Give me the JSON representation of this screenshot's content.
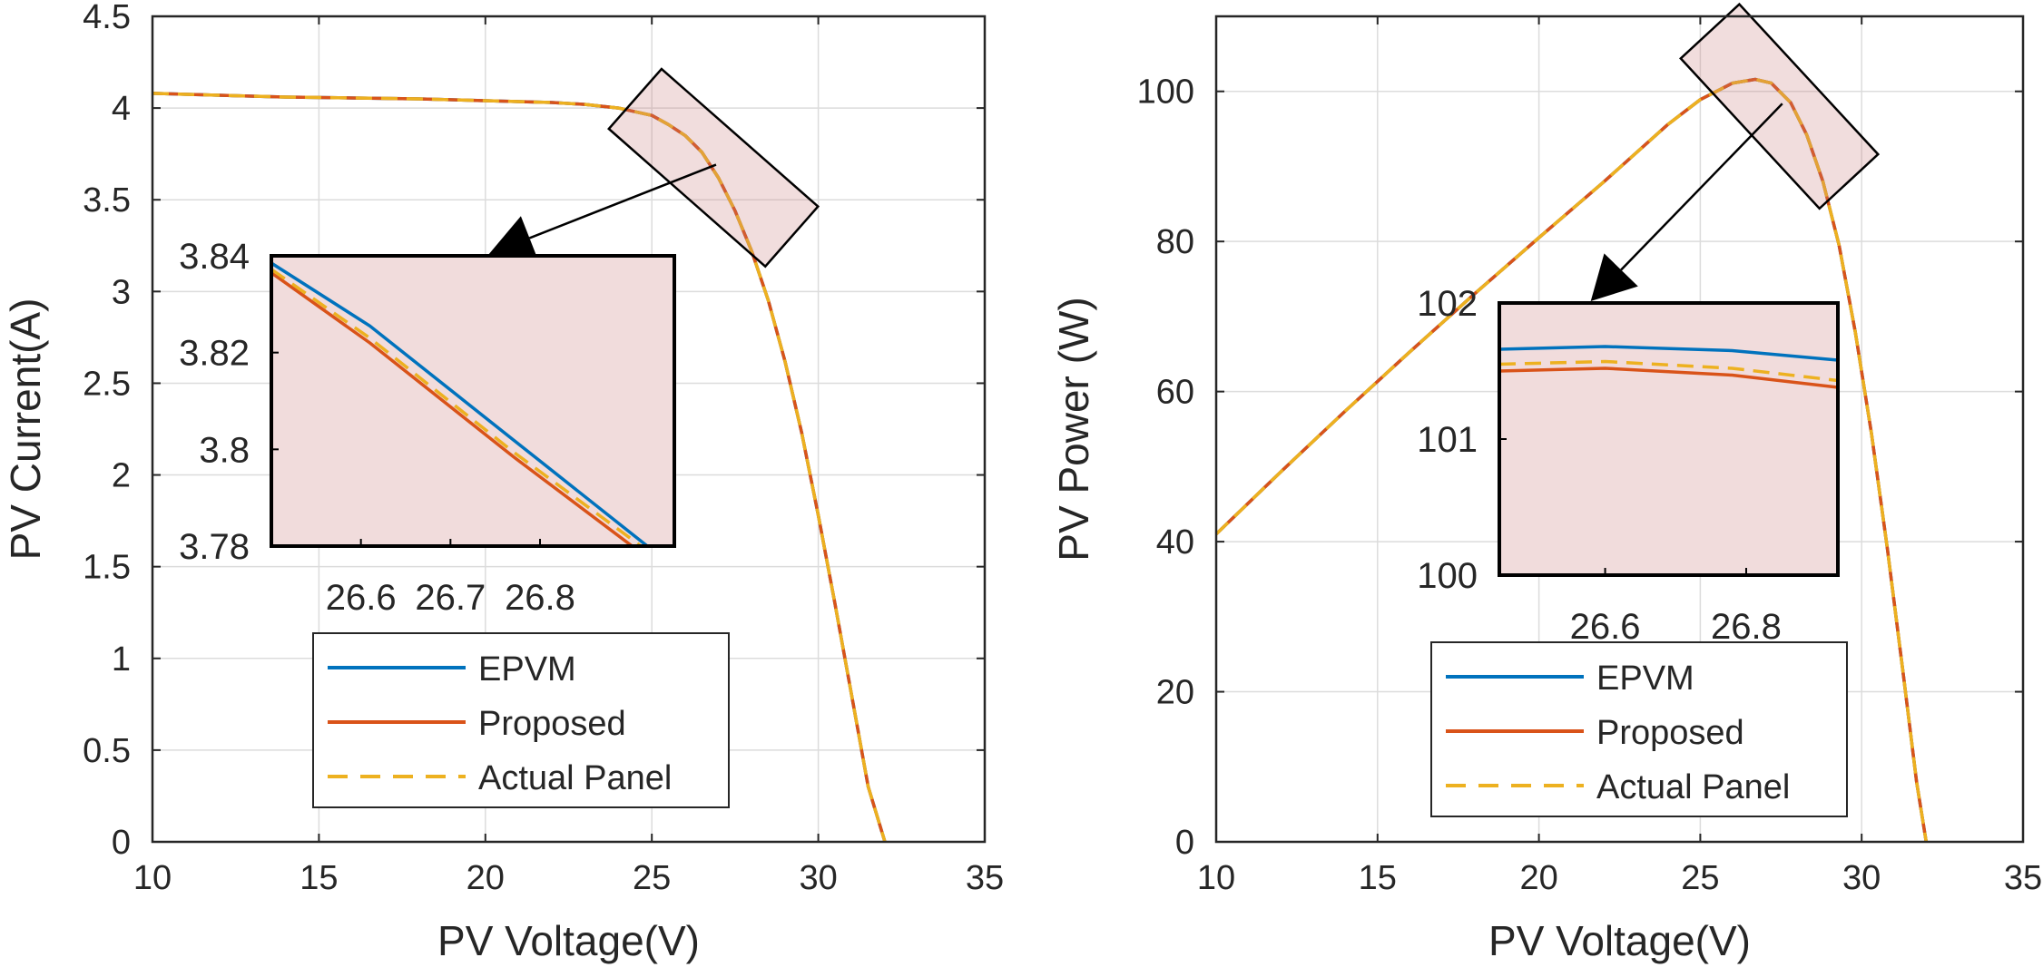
{
  "chart_data": [
    {
      "type": "line",
      "xlabel": "PV Voltage(V)",
      "ylabel": "PV Current(A)",
      "xlim": [
        10,
        35
      ],
      "ylim": [
        0,
        4.5
      ],
      "xticks": [
        10,
        15,
        20,
        25,
        30,
        35
      ],
      "xtick_labels": [
        "10",
        "15",
        "20",
        "25",
        "30",
        "35"
      ],
      "yticks": [
        0,
        0.5,
        1,
        1.5,
        2,
        2.5,
        3,
        3.5,
        4,
        4.5
      ],
      "ytick_labels": [
        "0",
        "0.5",
        "1",
        "1.5",
        "2",
        "2.5",
        "3",
        "3.5",
        "4",
        "4.5"
      ],
      "grid": true,
      "legend_position": "bottom-center",
      "series": [
        {
          "name": "EPVM",
          "color": "#0072BD",
          "style": "solid"
        },
        {
          "name": "Proposed",
          "color": "#D95319",
          "style": "solid"
        },
        {
          "name": "Actual Panel",
          "color": "#EDB120",
          "style": "dashed"
        }
      ],
      "curve": {
        "x": [
          10,
          12,
          14,
          16,
          18,
          20,
          21,
          22,
          23,
          24,
          24.5,
          25,
          25.5,
          26,
          26.5,
          27,
          27.5,
          28,
          28.5,
          29,
          29.5,
          30,
          30.5,
          31,
          31.5,
          32
        ],
        "y": [
          4.08,
          4.07,
          4.06,
          4.055,
          4.05,
          4.04,
          4.035,
          4.03,
          4.02,
          4.0,
          3.98,
          3.96,
          3.91,
          3.85,
          3.76,
          3.62,
          3.44,
          3.22,
          2.95,
          2.62,
          2.23,
          1.78,
          1.3,
          0.8,
          0.3,
          0
        ]
      },
      "highlight_region": {
        "x": [
          24.5,
          29.2
        ],
        "y": [
          3.3,
          4.05
        ]
      },
      "inset": {
        "xlim": [
          26.5,
          26.95
        ],
        "ylim": [
          3.78,
          3.84
        ],
        "xticks": [
          26.6,
          26.7,
          26.8
        ],
        "xtick_labels": [
          "26.6",
          "26.7",
          "26.8"
        ],
        "yticks": [
          3.78,
          3.8,
          3.82,
          3.84
        ],
        "ytick_labels": [
          "3.78",
          "3.8",
          "3.82",
          "3.84"
        ],
        "series": [
          {
            "name": "EPVM",
            "x": [
              26.5,
              26.61,
              26.77,
              26.93
            ],
            "y": [
              3.8385,
              3.8255,
              3.802,
              3.7785
            ]
          },
          {
            "name": "Proposed",
            "x": [
              26.5,
              26.61,
              26.77,
              26.91
            ],
            "y": [
              3.8365,
              3.822,
              3.7985,
              3.779
            ]
          },
          {
            "name": "Actual Panel",
            "x": [
              26.5,
              26.61,
              26.77,
              26.92
            ],
            "y": [
              3.8372,
              3.823,
              3.7995,
              3.779
            ]
          }
        ]
      }
    },
    {
      "type": "line",
      "xlabel": "PV Voltage(V)",
      "ylabel": "PV Power (W)",
      "xlim": [
        10,
        35
      ],
      "ylim": [
        0,
        110
      ],
      "xticks": [
        10,
        15,
        20,
        25,
        30,
        35
      ],
      "xtick_labels": [
        "10",
        "15",
        "20",
        "25",
        "30",
        "35"
      ],
      "yticks": [
        0,
        20,
        40,
        60,
        80,
        100
      ],
      "ytick_labels": [
        "0",
        "20",
        "40",
        "60",
        "80",
        "100"
      ],
      "grid": true,
      "legend_position": "bottom-center",
      "series": [
        {
          "name": "EPVM",
          "color": "#0072BD",
          "style": "solid"
        },
        {
          "name": "Proposed",
          "color": "#D95319",
          "style": "solid"
        },
        {
          "name": "Actual Panel",
          "color": "#EDB120",
          "style": "dashed"
        }
      ],
      "curve": {
        "x": [
          10,
          12,
          14,
          16,
          18,
          20,
          22,
          24,
          25,
          26,
          26.7,
          27.2,
          27.8,
          28.3,
          28.8,
          29.3,
          29.8,
          30.3,
          30.8,
          31.3,
          31.7,
          32
        ],
        "y": [
          41,
          49.3,
          57.4,
          65.3,
          73,
          80.5,
          87.9,
          95.6,
          98.9,
          101.1,
          101.6,
          101.1,
          98.5,
          94.2,
          88,
          79.5,
          68,
          54.5,
          39,
          22,
          8,
          0
        ]
      },
      "highlight_region": {
        "x": [
          25.3,
          29.6
        ],
        "y": [
          88,
          108
        ]
      },
      "inset": {
        "xlim": [
          26.45,
          26.93
        ],
        "ylim": [
          100,
          102
        ],
        "xticks": [
          26.6,
          26.8
        ],
        "xtick_labels": [
          "26.6",
          "26.8"
        ],
        "yticks": [
          100,
          101,
          102
        ],
        "ytick_labels": [
          "100",
          "101",
          "102"
        ],
        "series": [
          {
            "name": "EPVM",
            "x": [
              26.45,
              26.6,
              26.78,
              26.93
            ],
            "y": [
              101.66,
              101.68,
              101.65,
              101.58
            ]
          },
          {
            "name": "Proposed",
            "x": [
              26.45,
              26.6,
              26.78,
              26.93
            ],
            "y": [
              101.5,
              101.52,
              101.47,
              101.38
            ]
          },
          {
            "name": "Actual Panel",
            "x": [
              26.45,
              26.6,
              26.78,
              26.93
            ],
            "y": [
              101.55,
              101.57,
              101.52,
              101.43
            ]
          }
        ]
      }
    }
  ]
}
